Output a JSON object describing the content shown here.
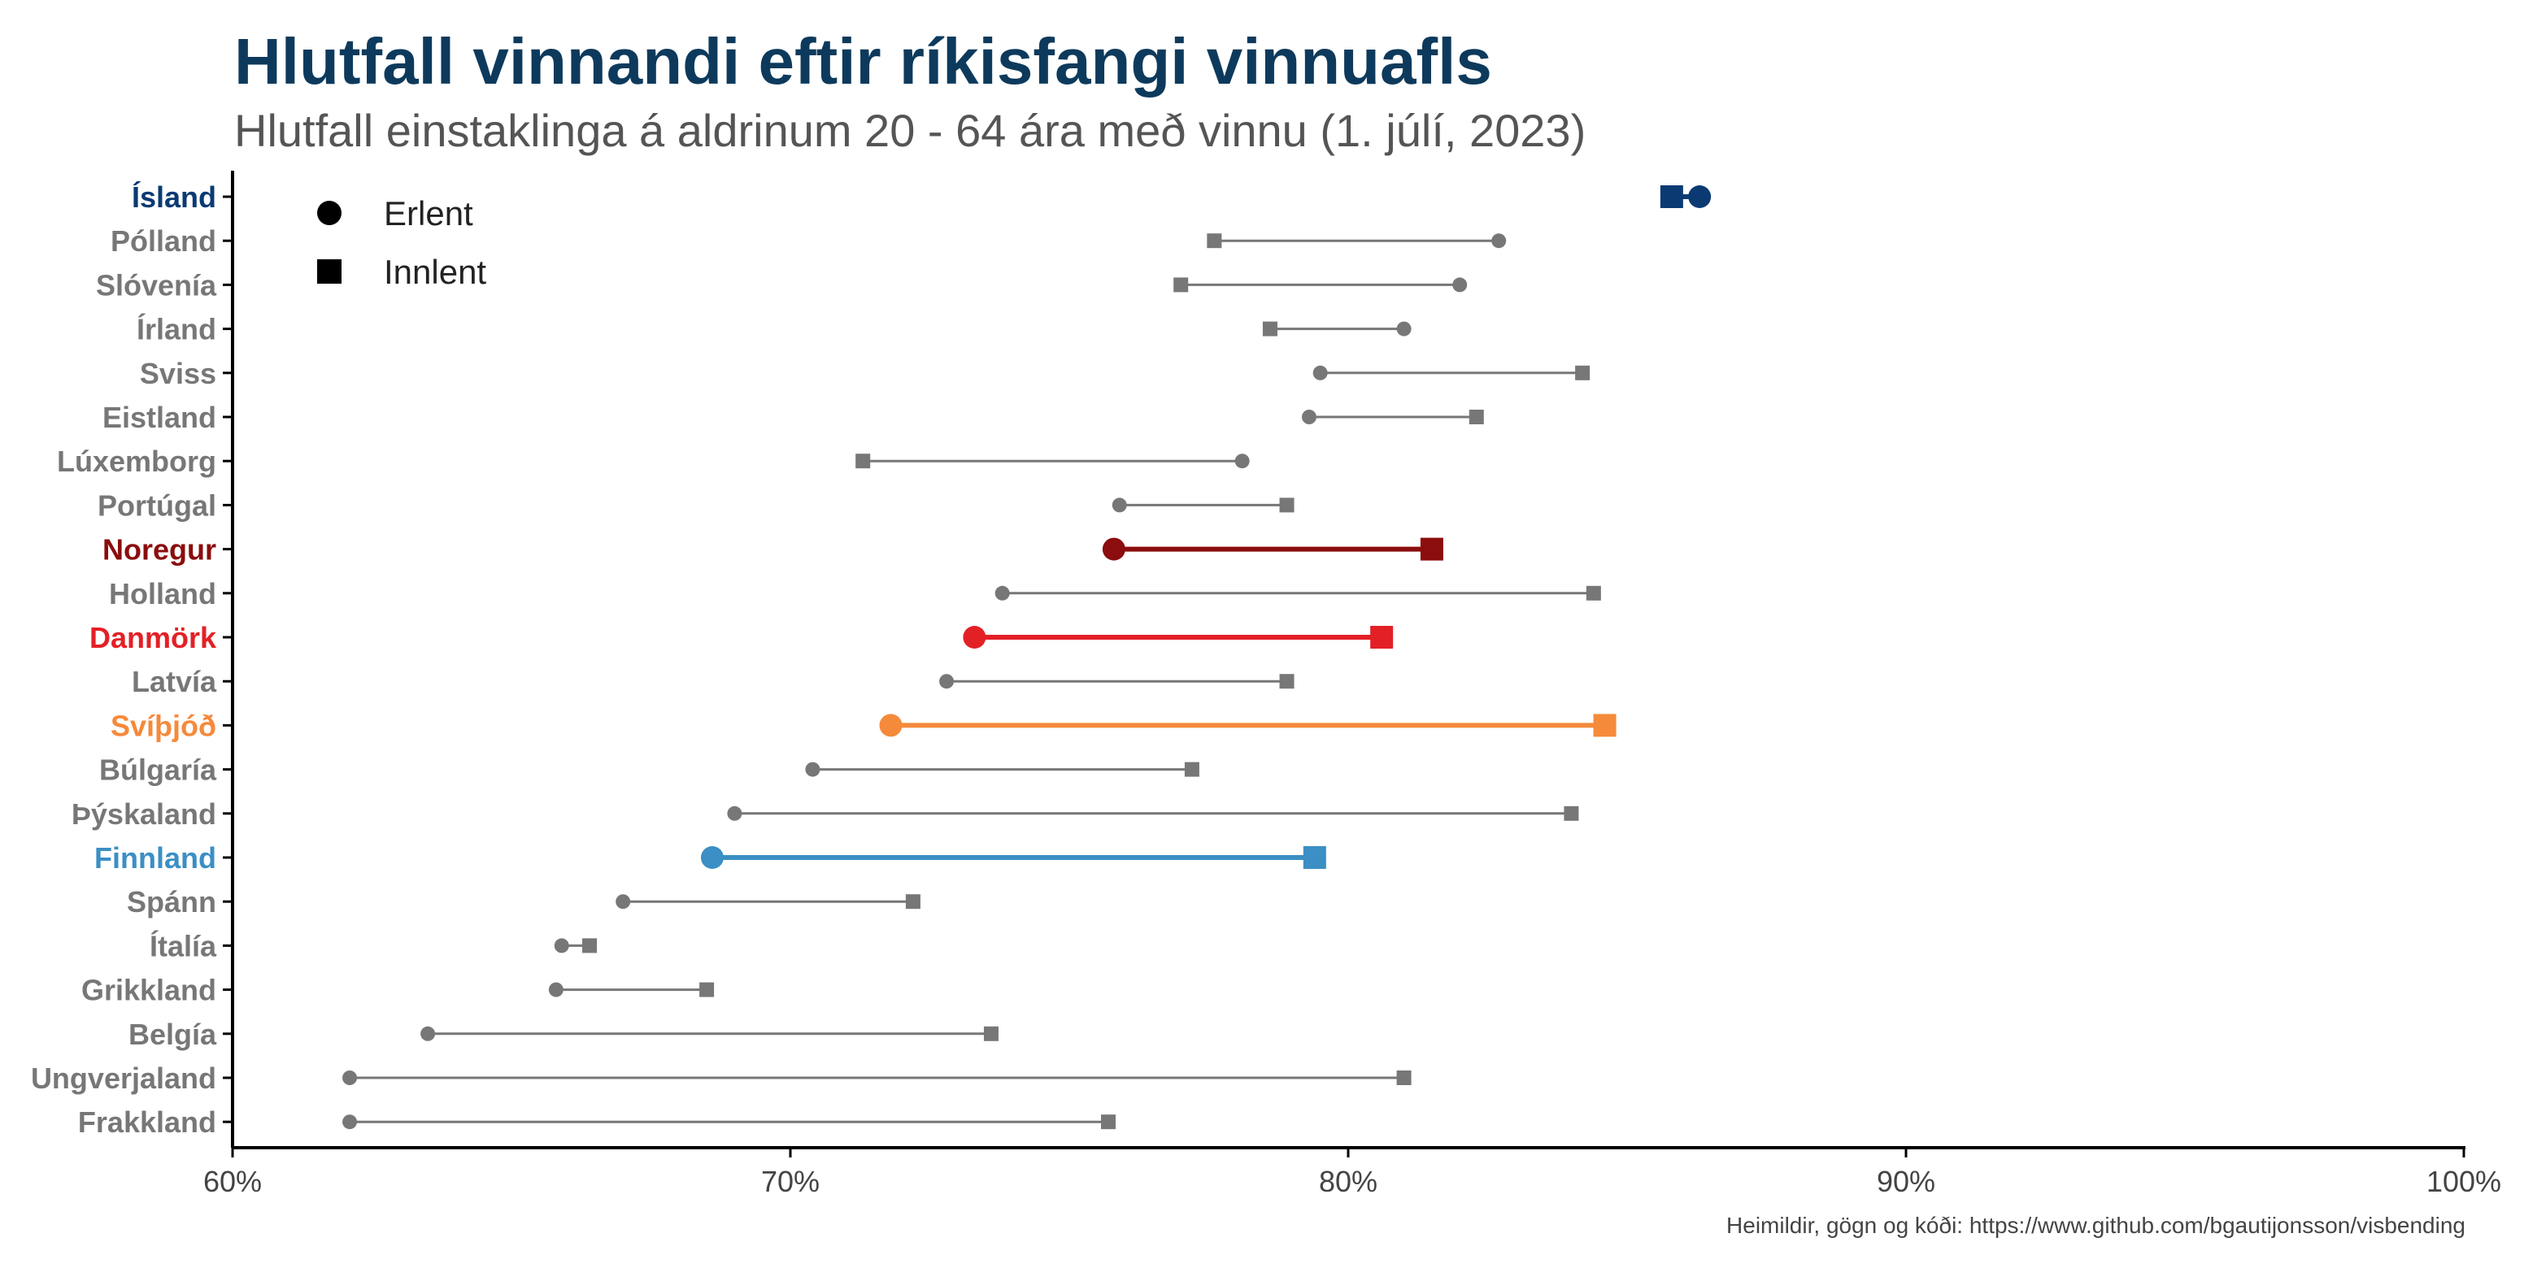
{
  "chart_data": {
    "type": "dumbbell",
    "title": "Hlutfall vinnandi eftir ríkisfangi vinnuafls",
    "subtitle": "Hlutfall einstaklinga á aldrinum 20 - 64 ára með vinnu (1. júlí, 2023)",
    "xlabel": "",
    "ylabel": "",
    "xlim": [
      60,
      100
    ],
    "x_ticks": [
      60,
      70,
      80,
      90,
      100
    ],
    "x_tick_labels": [
      "60%",
      "70%",
      "80%",
      "90%",
      "100%"
    ],
    "legend": {
      "placement": "top-left",
      "entries": [
        {
          "label": "Erlent",
          "shape": "circle"
        },
        {
          "label": "Innlent",
          "shape": "square"
        }
      ]
    },
    "highlight_colors": {
      "Ísland": "#0b3a73",
      "Noregur": "#8b0d0d",
      "Danmörk": "#e32026",
      "Svíþjóð": "#f58a3b",
      "Finnland": "#3b8fc4"
    },
    "default_color": "#777777",
    "countries": [
      {
        "name": "Ísland",
        "erlent": 86.3,
        "innlent": 85.8
      },
      {
        "name": "Pólland",
        "erlent": 82.7,
        "innlent": 77.6
      },
      {
        "name": "Slóvenía",
        "erlent": 82.0,
        "innlent": 77.0
      },
      {
        "name": "Írland",
        "erlent": 81.0,
        "innlent": 78.6
      },
      {
        "name": "Sviss",
        "erlent": 79.5,
        "innlent": 84.2
      },
      {
        "name": "Eistland",
        "erlent": 79.3,
        "innlent": 82.3
      },
      {
        "name": "Lúxemborg",
        "erlent": 78.1,
        "innlent": 71.3
      },
      {
        "name": "Portúgal",
        "erlent": 75.9,
        "innlent": 78.9
      },
      {
        "name": "Noregur",
        "erlent": 75.8,
        "innlent": 81.5
      },
      {
        "name": "Holland",
        "erlent": 73.8,
        "innlent": 84.4
      },
      {
        "name": "Danmörk",
        "erlent": 73.3,
        "innlent": 80.6
      },
      {
        "name": "Latvía",
        "erlent": 72.8,
        "innlent": 78.9
      },
      {
        "name": "Svíþjóð",
        "erlent": 71.8,
        "innlent": 84.6
      },
      {
        "name": "Búlgaría",
        "erlent": 70.4,
        "innlent": 77.2
      },
      {
        "name": "Þýskaland",
        "erlent": 69.0,
        "innlent": 84.0
      },
      {
        "name": "Finnland",
        "erlent": 68.6,
        "innlent": 79.4
      },
      {
        "name": "Spánn",
        "erlent": 67.0,
        "innlent": 72.2
      },
      {
        "name": "Ítalía",
        "erlent": 65.9,
        "innlent": 66.4
      },
      {
        "name": "Grikkland",
        "erlent": 65.8,
        "innlent": 68.5
      },
      {
        "name": "Belgía",
        "erlent": 63.5,
        "innlent": 73.6
      },
      {
        "name": "Ungverjaland",
        "erlent": 62.1,
        "innlent": 81.0
      },
      {
        "name": "Frakkland",
        "erlent": 62.1,
        "innlent": 75.7
      }
    ]
  },
  "caption": "Heimildir, gögn og kóði: https://www.github.com/bgautijonsson/visbending"
}
